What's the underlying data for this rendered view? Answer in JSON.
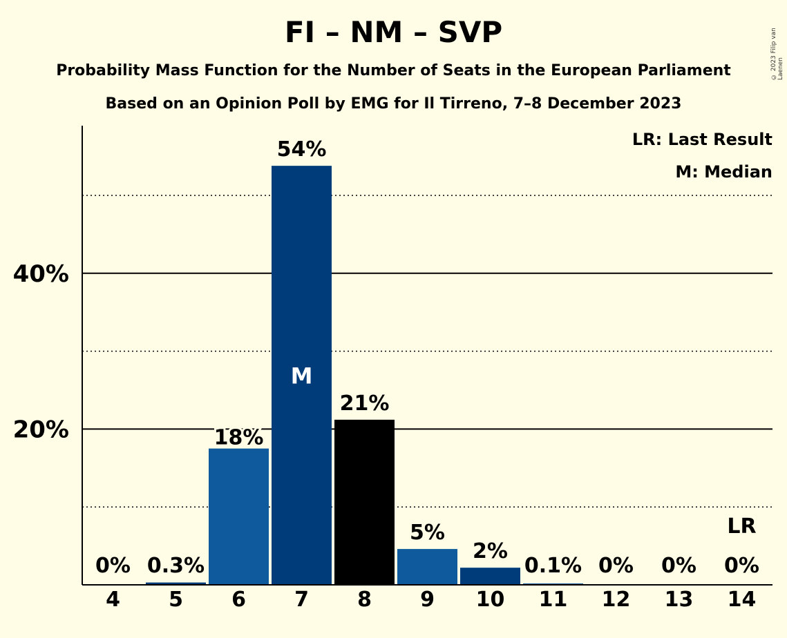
{
  "title": "FI – NM – SVP",
  "subtitle1": "Probability Mass Function for the Number of Seats in the European Parliament",
  "subtitle2": "Based on an Opinion Poll by EMG for Il Tirreno, 7–8 December 2023",
  "copyright": "© 2023 Filip van Laenen",
  "legend": {
    "last_result": "LR: Last Result",
    "median": "M: Median"
  },
  "colors": {
    "background": "#fffde6",
    "bar_blue": "#0e5a9c",
    "bar_navy": "#003b7a",
    "bar_black": "#000000"
  },
  "chart_data": {
    "type": "bar",
    "categories": [
      "4",
      "5",
      "6",
      "7",
      "8",
      "9",
      "10",
      "11",
      "12",
      "13",
      "14"
    ],
    "values": [
      0,
      0.3,
      17.5,
      53.8,
      21.2,
      4.6,
      2.2,
      0.1,
      0,
      0,
      0
    ],
    "labels": [
      "0%",
      "0.3%",
      "18%",
      "54%",
      "21%",
      "5%",
      "2%",
      "0.1%",
      "0%",
      "0%",
      "0%"
    ],
    "colors": [
      "#0e5a9c",
      "#003b7a",
      "#0e5a9c",
      "#003b7a",
      "#000000",
      "#0e5a9c",
      "#003b7a",
      "#0e5a9c",
      "#003b7a",
      "#000000",
      "#0e5a9c"
    ],
    "median_category": "7",
    "median_marker": "M",
    "last_result_category": "14",
    "last_result_marker": "LR",
    "ylim": [
      0,
      59
    ],
    "yticks": [
      {
        "value": 20,
        "label": "20%"
      },
      {
        "value": 40,
        "label": "40%"
      }
    ],
    "minor_gridlines": [
      10,
      30,
      50
    ],
    "legend_position": "top-right"
  }
}
